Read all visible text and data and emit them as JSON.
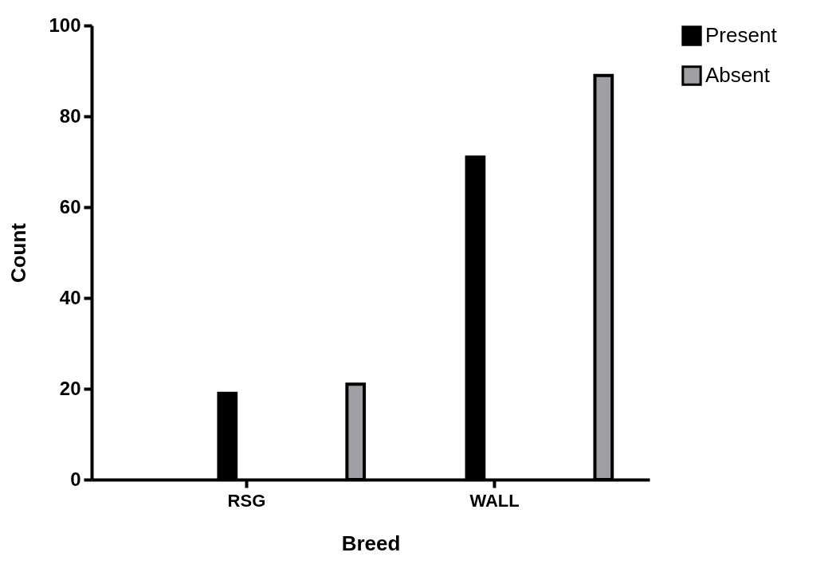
{
  "chart_data": {
    "type": "bar",
    "xlabel": "Breed",
    "ylabel": "Count",
    "categories": [
      "RSG",
      "WALL"
    ],
    "series": [
      {
        "name": "Present",
        "color": "#000000",
        "values": [
          19,
          71
        ]
      },
      {
        "name": "Absent",
        "color": "#a0a0a4",
        "values": [
          21,
          89
        ]
      }
    ],
    "ylim": [
      0,
      100
    ],
    "yticks": [
      0,
      20,
      40,
      60,
      80,
      100
    ],
    "grid": false,
    "legend": "top right"
  }
}
